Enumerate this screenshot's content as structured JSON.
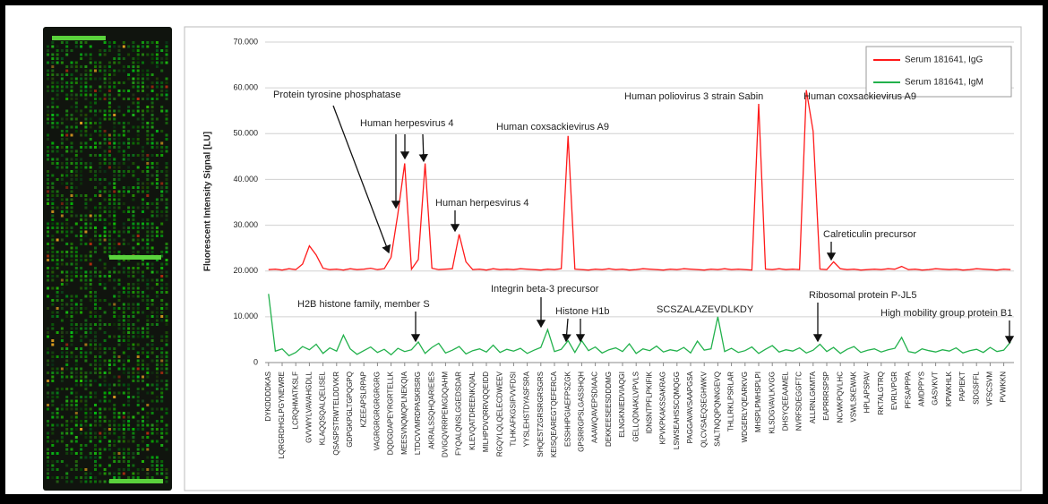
{
  "chart_data": {
    "type": "line",
    "ylabel": "Fluorescent Intensity Signal [LU]",
    "ylim": [
      0,
      70000
    ],
    "yticks": [
      {
        "value": 0,
        "label": "0"
      },
      {
        "value": 10000,
        "label": "10.000"
      },
      {
        "value": 20000,
        "label": "20.000"
      },
      {
        "value": 30000,
        "label": "30.000"
      },
      {
        "value": 40000,
        "label": "40.000"
      },
      {
        "value": 50000,
        "label": "50.000"
      },
      {
        "value": 60000,
        "label": "60.000"
      },
      {
        "value": 70000,
        "label": "70.000"
      }
    ],
    "grid": true,
    "legend": "upper right",
    "categories": [
      "DYKDDDDKAS",
      null,
      "LQRGRDHGLPGYNEWRE",
      null,
      "LCRQHMATKSLF",
      null,
      "GVVWYLVAVAHGDLL",
      null,
      "KLAQQSQALQELISEL",
      null,
      "QSASPSTRWTELDDVKR",
      null,
      "GDPGKPGLTGPQGPQ",
      null,
      "KZEEAPSLRPAP",
      null,
      "VAGRGRGRGRGRGRG",
      null,
      "DQDGDAPEYRGRTELLK",
      null,
      "MEESVNQMQPLNEKQIA",
      null,
      "LTDCVVMRDPASKRSRG",
      null,
      "AKRALSSQHQARIEIES",
      null,
      "DVIGQVRRPEMGDQAHM",
      null,
      "FYQALQNSLGGEDSDAR",
      null,
      "KLEVQATDREENKQIAL",
      null,
      "MILHPDVQRRVQQEIDD",
      null,
      "RGQYLQLQELECDWEEV",
      null,
      "TLHKAFKGSIFVVFDSI",
      null,
      "YYSLEHSTDYASFSRA",
      null,
      "SHQESTZGRSRGRSGRS",
      null,
      "KEISQEAREGTQEFERCA",
      null,
      "ESSHHPGIAEFPSZGK",
      null,
      "GPSRRGPSLGASSHQH",
      null,
      "AAAWQAVEPSDIAAC",
      null,
      "DEKKEESEESDDDMG",
      null,
      "ELNGKNIEDVIAQGI",
      null,
      "GELLQDNAKLVPVLS",
      null,
      "IDNSNTPFLPKIFIK",
      null,
      "KPVKPKAKSSAKRAG",
      null,
      "LSWSEAHSSCQMQGG",
      null,
      "PAGGAVAVSAAPGSA",
      null,
      "QLCVSAEQSEGHWKV",
      null,
      "SALTNQQPQNNGEVQ",
      null,
      "THLLRKLPSRLAR",
      null,
      "WDGERLYQEARKVG",
      null,
      "MHSPLPMHSPLPI",
      null,
      "KLSDGVAVLKVGG",
      null,
      "DHSYQEEAAMEL",
      null,
      "NVRFSDEGGFTC",
      null,
      "ALLRNLGKMTA",
      null,
      "EAPRRRSPSP",
      null,
      "NCWKPQVLHC",
      null,
      "VSWLSKEWAK",
      null,
      "HPLAPSPAV",
      null,
      "RKTALGTRQ",
      null,
      "EVRLVPGR",
      null,
      "PFSAPPPA",
      null,
      "AMDPPYS",
      null,
      "GASVKVT",
      null,
      "KPWKHLK",
      null,
      "PAPIEKT",
      null,
      "SDGSFFL",
      null,
      "VFSCSVM",
      null,
      "PVWKKN",
      null
    ],
    "series": [
      {
        "name": "Serum 181641, IgG",
        "color": "#ff1a1a",
        "values": [
          20300,
          20400,
          20200,
          20500,
          20300,
          21500,
          25500,
          23500,
          20600,
          20300,
          20400,
          20200,
          20500,
          20300,
          20400,
          20600,
          20300,
          20500,
          23000,
          32500,
          43500,
          20400,
          22500,
          43500,
          20600,
          20300,
          20400,
          20500,
          28000,
          22000,
          20300,
          20400,
          20200,
          20500,
          20300,
          20400,
          20300,
          20500,
          20400,
          20300,
          20200,
          20400,
          20300,
          20500,
          49500,
          20400,
          20300,
          20200,
          20400,
          20300,
          20500,
          20300,
          20400,
          20200,
          20300,
          20500,
          20400,
          20300,
          20200,
          20400,
          20300,
          20500,
          20400,
          20300,
          20200,
          20400,
          20300,
          20500,
          20300,
          20400,
          20300,
          20200,
          56500,
          20400,
          20300,
          20500,
          20300,
          20400,
          20300,
          59500,
          50500,
          20400,
          20300,
          22000,
          20500,
          20300,
          20400,
          20200,
          20300,
          20400,
          20300,
          20500,
          20400,
          21000,
          20300,
          20400,
          20200,
          20300,
          20500,
          20400,
          20300,
          20400,
          20200,
          20300,
          20500,
          20400,
          20300,
          20200,
          20400,
          20300
        ]
      },
      {
        "name": "Serum 181641, IgM",
        "color": "#22b14c",
        "values": [
          15000,
          2500,
          3000,
          1500,
          2200,
          3500,
          2800,
          4000,
          2000,
          3200,
          2500,
          6000,
          3000,
          1800,
          2600,
          3400,
          2200,
          2900,
          1700,
          3100,
          2400,
          2800,
          4500,
          2000,
          3300,
          4200,
          2100,
          2700,
          3500,
          1900,
          2600,
          3000,
          2300,
          3800,
          2200,
          2900,
          2500,
          3100,
          2000,
          2700,
          3300,
          7200,
          2400,
          2900,
          4800,
          2200,
          4800,
          2600,
          3400,
          2100,
          2800,
          3200,
          2400,
          4100,
          2000,
          3000,
          2600,
          3600,
          2300,
          2800,
          2500,
          3300,
          2100,
          4700,
          2700,
          3000,
          10000,
          2400,
          3100,
          2200,
          2600,
          3400,
          2000,
          2900,
          3700,
          2300,
          2800,
          2500,
          3200,
          2100,
          2700,
          4000,
          2400,
          3300,
          2000,
          2900,
          3500,
          2200,
          2700,
          3000,
          2300,
          2800,
          3100,
          5500,
          2400,
          2100,
          3000,
          2600,
          2300,
          2800,
          2500,
          3200,
          2100,
          2600,
          2900,
          2200,
          3300,
          2400,
          2700,
          4500
        ]
      }
    ],
    "annotations": [
      "Protein tyrosine phosphatase",
      "Human herpesvirus 4",
      "Human coxsackievirus A9",
      "Human herpesvirus 4",
      "Human poliovirus 3 strain Sabin",
      "Human coxsackievirus A9",
      "Calreticulin precursor",
      "H2B histone family, member S",
      "Integrin beta-3 precursor",
      "Histone H1b",
      "SCSZALAZEVDLKDY",
      "Ribosomal protein P-JL5",
      "High mobility group protein B1"
    ]
  }
}
